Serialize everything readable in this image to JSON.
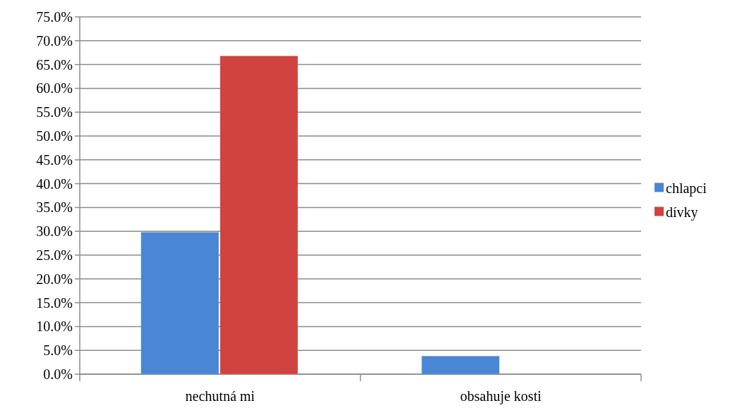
{
  "chart_data": {
    "type": "bar",
    "categories": [
      "nechutná mi",
      "obsahuje kosti"
    ],
    "series": [
      {
        "name": "chlapci",
        "color": "#4a86d6",
        "values": [
          29.8,
          3.8
        ]
      },
      {
        "name": "dívky",
        "color": "#d0433e",
        "values": [
          66.8,
          0
        ]
      }
    ],
    "ylim": [
      0,
      75
    ],
    "yticks": [
      {
        "value": 0,
        "label": "0.0%"
      },
      {
        "value": 5,
        "label": "5.0%"
      },
      {
        "value": 10,
        "label": "10.0%"
      },
      {
        "value": 15,
        "label": "15.0%"
      },
      {
        "value": 20,
        "label": "20.0%"
      },
      {
        "value": 25,
        "label": "25.0%"
      },
      {
        "value": 30,
        "label": "30.0%"
      },
      {
        "value": 35,
        "label": "35.0%"
      },
      {
        "value": 40,
        "label": "40.0%"
      },
      {
        "value": 45,
        "label": "45.0%"
      },
      {
        "value": 50,
        "label": "50.0%"
      },
      {
        "value": 55,
        "label": "55.0%"
      },
      {
        "value": 60,
        "label": "60.0%"
      },
      {
        "value": 65,
        "label": "65.0%"
      },
      {
        "value": 70,
        "label": "70.0%"
      },
      {
        "value": 75,
        "label": "75.0%"
      }
    ],
    "grid": "y",
    "legend": "right"
  }
}
